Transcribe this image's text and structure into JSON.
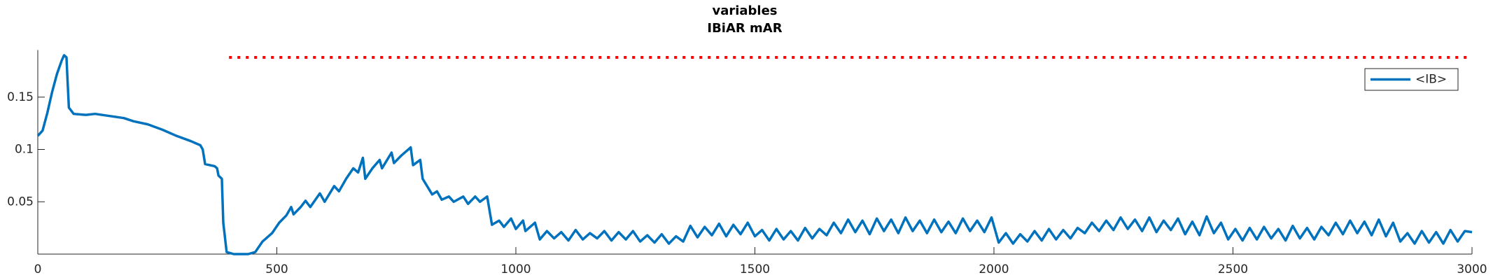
{
  "chart_data": {
    "type": "line",
    "title": "variables",
    "subtitle": "IBiAR mAR",
    "x": [
      0,
      10,
      20,
      30,
      40,
      50,
      55,
      60,
      62,
      65,
      75,
      100,
      120,
      150,
      180,
      200,
      230,
      260,
      290,
      320,
      340,
      345,
      350,
      370,
      375,
      378,
      385,
      388,
      395,
      410,
      440,
      455,
      470,
      490,
      505,
      520,
      530,
      535,
      550,
      560,
      570,
      590,
      600,
      620,
      630,
      645,
      660,
      670,
      680,
      685,
      700,
      715,
      720,
      740,
      745,
      760,
      775,
      780,
      785,
      800,
      805,
      825,
      835,
      845,
      860,
      870,
      890,
      900,
      915,
      925,
      940,
      950,
      965,
      975,
      990,
      1000,
      1015,
      1020,
      1040,
      1050,
      1065,
      1080,
      1095,
      1110,
      1125,
      1140,
      1155,
      1170,
      1185,
      1200,
      1215,
      1230,
      1245,
      1260,
      1275,
      1290,
      1305,
      1320,
      1335,
      1350,
      1365,
      1380,
      1395,
      1410,
      1425,
      1440,
      1455,
      1470,
      1485,
      1500,
      1515,
      1530,
      1545,
      1560,
      1575,
      1590,
      1605,
      1620,
      1635,
      1650,
      1665,
      1680,
      1695,
      1710,
      1725,
      1740,
      1755,
      1770,
      1785,
      1800,
      1815,
      1830,
      1845,
      1860,
      1875,
      1890,
      1905,
      1920,
      1935,
      1950,
      1965,
      1980,
      1995,
      2010,
      2025,
      2040,
      2055,
      2070,
      2085,
      2100,
      2115,
      2130,
      2145,
      2160,
      2175,
      2190,
      2205,
      2220,
      2235,
      2250,
      2265,
      2280,
      2295,
      2310,
      2325,
      2340,
      2355,
      2370,
      2385,
      2400,
      2415,
      2430,
      2445,
      2460,
      2475,
      2490,
      2505,
      2520,
      2535,
      2550,
      2565,
      2580,
      2595,
      2610,
      2625,
      2640,
      2655,
      2670,
      2685,
      2700,
      2715,
      2730,
      2745,
      2760,
      2775,
      2790,
      2805,
      2820,
      2835,
      2850,
      2865,
      2880,
      2895,
      2910,
      2925,
      2940,
      2955,
      2970,
      2985,
      3000
    ],
    "series": [
      {
        "name": "<IB>",
        "color": "#0072bd",
        "values": [
          0.113,
          0.118,
          0.135,
          0.155,
          0.172,
          0.185,
          0.19,
          0.188,
          0.168,
          0.14,
          0.134,
          0.133,
          0.134,
          0.132,
          0.13,
          0.127,
          0.124,
          0.119,
          0.113,
          0.108,
          0.104,
          0.1,
          0.086,
          0.084,
          0.082,
          0.075,
          0.072,
          0.03,
          0.002,
          0,
          0,
          0.002,
          0.012,
          0.02,
          0.03,
          0.037,
          0.045,
          0.038,
          0.045,
          0.051,
          0.045,
          0.058,
          0.05,
          0.065,
          0.06,
          0.072,
          0.082,
          0.078,
          0.092,
          0.072,
          0.082,
          0.09,
          0.082,
          0.097,
          0.087,
          0.094,
          0.1,
          0.102,
          0.085,
          0.09,
          0.072,
          0.057,
          0.06,
          0.052,
          0.055,
          0.05,
          0.055,
          0.048,
          0.055,
          0.05,
          0.055,
          0.028,
          0.032,
          0.026,
          0.034,
          0.024,
          0.032,
          0.022,
          0.03,
          0.014,
          0.022,
          0.015,
          0.021,
          0.013,
          0.023,
          0.014,
          0.02,
          0.015,
          0.022,
          0.013,
          0.021,
          0.014,
          0.022,
          0.012,
          0.018,
          0.011,
          0.019,
          0.01,
          0.017,
          0.012,
          0.027,
          0.016,
          0.026,
          0.018,
          0.029,
          0.017,
          0.028,
          0.019,
          0.03,
          0.017,
          0.023,
          0.013,
          0.024,
          0.014,
          0.022,
          0.013,
          0.025,
          0.015,
          0.024,
          0.018,
          0.03,
          0.02,
          0.033,
          0.021,
          0.032,
          0.019,
          0.034,
          0.022,
          0.033,
          0.02,
          0.035,
          0.022,
          0.032,
          0.02,
          0.033,
          0.021,
          0.031,
          0.02,
          0.034,
          0.022,
          0.032,
          0.021,
          0.035,
          0.011,
          0.02,
          0.01,
          0.019,
          0.012,
          0.022,
          0.013,
          0.024,
          0.014,
          0.023,
          0.015,
          0.025,
          0.02,
          0.03,
          0.022,
          0.032,
          0.023,
          0.035,
          0.024,
          0.033,
          0.022,
          0.035,
          0.021,
          0.032,
          0.023,
          0.034,
          0.019,
          0.031,
          0.018,
          0.036,
          0.02,
          0.03,
          0.014,
          0.024,
          0.013,
          0.025,
          0.014,
          0.026,
          0.015,
          0.024,
          0.013,
          0.027,
          0.015,
          0.025,
          0.014,
          0.026,
          0.018,
          0.03,
          0.019,
          0.032,
          0.02,
          0.031,
          0.018,
          0.033,
          0.017,
          0.03,
          0.012,
          0.02,
          0.01,
          0.022,
          0.011,
          0.021,
          0.01,
          0.023,
          0.012,
          0.022,
          0.021
        ]
      }
    ],
    "reference_line": {
      "x": [
        400,
        3000
      ],
      "values": [
        0.188,
        0.188
      ],
      "color": "#ff0000"
    },
    "xlim": [
      0,
      3000
    ],
    "xticks": [
      0,
      500,
      1000,
      1500,
      2000,
      2500,
      3000
    ],
    "ylim": [
      0,
      0.195
    ],
    "yticks": [
      0.05,
      0.1,
      0.15
    ],
    "legend": "upper right"
  }
}
